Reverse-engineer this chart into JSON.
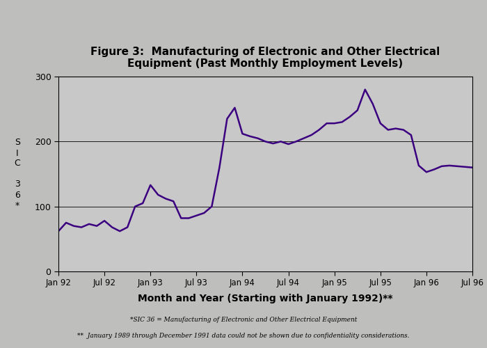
{
  "title": "Figure 3:  Manufacturing of Electronic and Other Electrical\nEquipment (Past Monthly Employment Levels)",
  "xlabel": "Month and Year (Starting with January 1992)**",
  "ylabel": "S\nI\nC\n\n3\n6\n*",
  "footnote1": "*SIC 36 = Manufacturing of Electronic and Other Electrical Equipment",
  "footnote2": "**  January 1989 through December 1991 data could not be shown due to confidentiality considerations.",
  "line_color": "#3A0080",
  "bg_color": "#BEBEBD",
  "plot_bg_color": "#C8C8C8",
  "ylim": [
    0,
    300
  ],
  "yticks": [
    0,
    100,
    200,
    300
  ],
  "xtick_labels": [
    "Jan 92",
    "Jul 92",
    "Jan 93",
    "Jul 93",
    "Jan 94",
    "Jul 94",
    "Jan 95",
    "Jul 95",
    "Jan 96",
    "Jul 96"
  ],
  "xtick_positions": [
    0,
    6,
    12,
    18,
    24,
    30,
    36,
    42,
    48,
    54
  ],
  "values": [
    62,
    75,
    70,
    68,
    73,
    70,
    78,
    68,
    62,
    68,
    100,
    105,
    133,
    118,
    112,
    108,
    82,
    82,
    86,
    90,
    100,
    160,
    235,
    252,
    212,
    208,
    205,
    200,
    197,
    200,
    196,
    200,
    205,
    210,
    218,
    228,
    228,
    230,
    238,
    248,
    280,
    258,
    228,
    218,
    220,
    218,
    210,
    163,
    153,
    157,
    162,
    163,
    162,
    161,
    160
  ]
}
